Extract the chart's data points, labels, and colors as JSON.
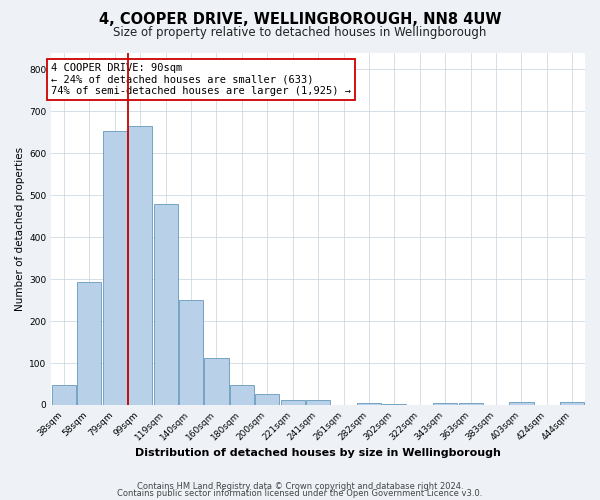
{
  "title": "4, COOPER DRIVE, WELLINGBOROUGH, NN8 4UW",
  "subtitle": "Size of property relative to detached houses in Wellingborough",
  "xlabel": "Distribution of detached houses by size in Wellingborough",
  "ylabel": "Number of detached properties",
  "categories": [
    "38sqm",
    "58sqm",
    "79sqm",
    "99sqm",
    "119sqm",
    "140sqm",
    "160sqm",
    "180sqm",
    "200sqm",
    "221sqm",
    "241sqm",
    "261sqm",
    "282sqm",
    "302sqm",
    "322sqm",
    "343sqm",
    "363sqm",
    "383sqm",
    "403sqm",
    "424sqm",
    "444sqm"
  ],
  "values": [
    47,
    293,
    652,
    665,
    478,
    250,
    113,
    48,
    27,
    13,
    13,
    0,
    4,
    3,
    0,
    5,
    4,
    0,
    8,
    0,
    6
  ],
  "bar_color": "#b8d0e8",
  "bar_edge_color": "#6699bb",
  "vline_color": "#cc0000",
  "vline_x": 2.5,
  "annotation_line1": "4 COOPER DRIVE: 90sqm",
  "annotation_line2": "← 24% of detached houses are smaller (633)",
  "annotation_line3": "74% of semi-detached houses are larger (1,925) →",
  "box_edge_color": "#cc0000",
  "ylim": [
    0,
    840
  ],
  "yticks": [
    0,
    100,
    200,
    300,
    400,
    500,
    600,
    700,
    800
  ],
  "footer_line1": "Contains HM Land Registry data © Crown copyright and database right 2024.",
  "footer_line2": "Contains public sector information licensed under the Open Government Licence v3.0.",
  "bg_color": "#eef2f7",
  "plot_bg_color": "#ffffff",
  "title_fontsize": 10.5,
  "subtitle_fontsize": 8.5,
  "xlabel_fontsize": 8,
  "ylabel_fontsize": 7.5,
  "tick_fontsize": 6.5,
  "ann_fontsize": 7.5,
  "footer_fontsize": 6
}
